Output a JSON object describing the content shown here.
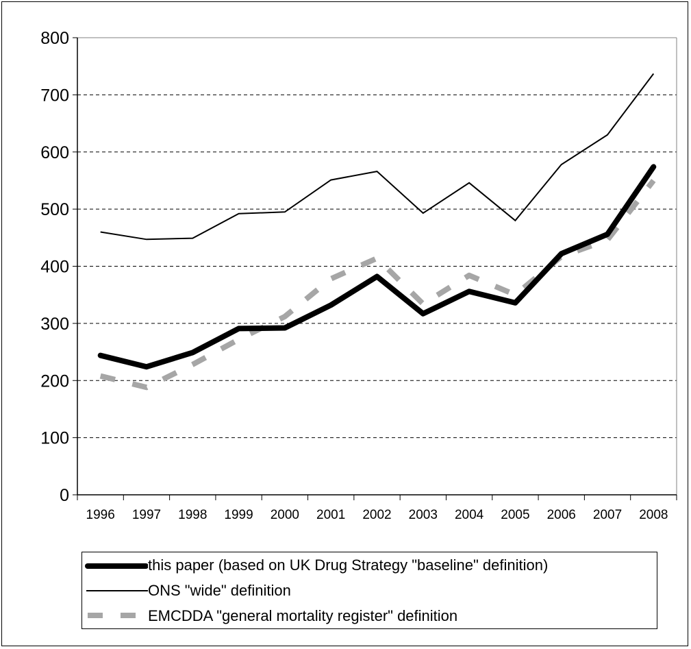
{
  "chart_data": {
    "type": "line",
    "categories": [
      "1996",
      "1997",
      "1998",
      "1999",
      "2000",
      "2001",
      "2002",
      "2003",
      "2004",
      "2005",
      "2006",
      "2007",
      "2008"
    ],
    "ylim": [
      0,
      800
    ],
    "yticks": [
      0,
      100,
      200,
      300,
      400,
      500,
      600,
      700,
      800
    ],
    "grid": "horizontal dashed",
    "legend_position": "bottom",
    "series": [
      {
        "name": "this paper (based on UK Drug Strategy \"baseline\" definition)",
        "style": "thick-solid",
        "color": "#000000",
        "values": [
          244,
          224,
          249,
          291,
          292,
          332,
          382,
          317,
          356,
          336,
          422,
          456,
          574
        ]
      },
      {
        "name": "ONS \"wide\" definition",
        "style": "thin-solid",
        "color": "#000000",
        "values": [
          460,
          447,
          449,
          492,
          495,
          551,
          566,
          493,
          546,
          480,
          578,
          630,
          737
        ]
      },
      {
        "name": "EMCDDA \"general mortality register\" definition",
        "style": "dashed",
        "color": "#a6a6a6",
        "values": [
          208,
          188,
          228,
          272,
          312,
          378,
          414,
          334,
          384,
          350,
          417,
          446,
          550
        ]
      }
    ]
  }
}
